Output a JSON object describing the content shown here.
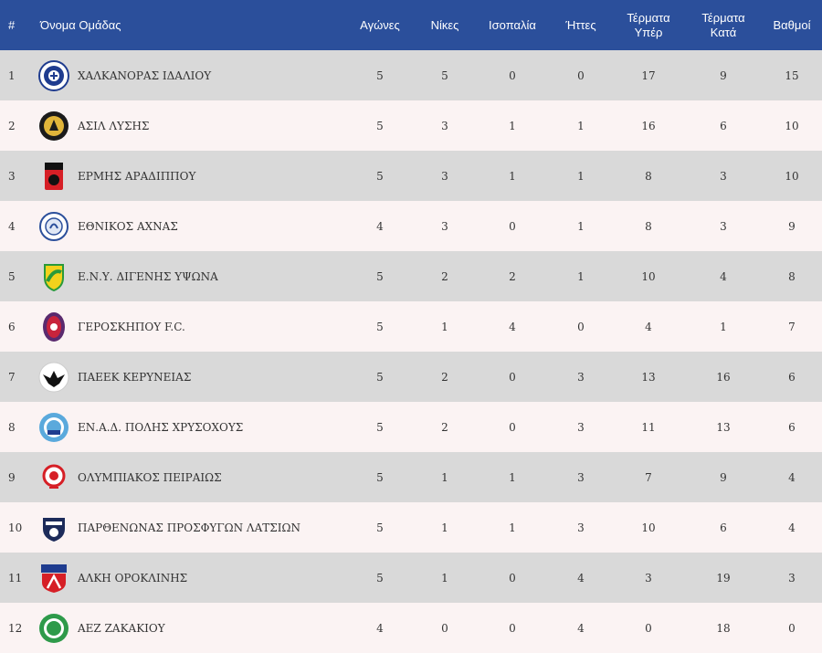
{
  "table": {
    "headers": {
      "pos": "#",
      "team": "Όνομα Ομάδας",
      "played": "Αγώνες",
      "wins": "Νίκες",
      "draws": "Ισοπαλία",
      "losses": "Ήττες",
      "goals_for_line1": "Τέρματα",
      "goals_for_line2": "Υπέρ",
      "goals_against_line1": "Τέρματα",
      "goals_against_line2": "Κατά",
      "points": "Βαθμοί"
    },
    "rows": [
      {
        "pos": "1",
        "team": "ΧΑΛΚΑΝΟΡΑΣ ΙΔΑΛΙΟΥ",
        "logo": "chalkanoras-crest-icon",
        "played": "5",
        "wins": "5",
        "draws": "0",
        "losses": "0",
        "gf": "17",
        "ga": "9",
        "pts": "15"
      },
      {
        "pos": "2",
        "team": "ΑΣΙΛ ΛΥΣΗΣ",
        "logo": "asil-crest-icon",
        "played": "5",
        "wins": "3",
        "draws": "1",
        "losses": "1",
        "gf": "16",
        "ga": "6",
        "pts": "10"
      },
      {
        "pos": "3",
        "team": "ΕΡΜΗΣ ΑΡΑΔΙΠΠΟΥ",
        "logo": "ermis-crest-icon",
        "played": "5",
        "wins": "3",
        "draws": "1",
        "losses": "1",
        "gf": "8",
        "ga": "3",
        "pts": "10"
      },
      {
        "pos": "4",
        "team": "ΕΘΝΙΚΟΣ ΑΧΝΑΣ",
        "logo": "ethnikos-crest-icon",
        "played": "4",
        "wins": "3",
        "draws": "0",
        "losses": "1",
        "gf": "8",
        "ga": "3",
        "pts": "9"
      },
      {
        "pos": "5",
        "team": "Ε.Ν.Υ. ΔΙΓΕΝΗΣ ΥΨΩΝΑ",
        "logo": "digenis-crest-icon",
        "played": "5",
        "wins": "2",
        "draws": "2",
        "losses": "1",
        "gf": "10",
        "ga": "4",
        "pts": "8"
      },
      {
        "pos": "6",
        "team": "ΓΕΡΟΣΚΗΠΟΥ F.C.",
        "logo": "geroskipou-crest-icon",
        "played": "5",
        "wins": "1",
        "draws": "4",
        "losses": "0",
        "gf": "4",
        "ga": "1",
        "pts": "7"
      },
      {
        "pos": "7",
        "team": "ΠΑΕΕΚ ΚΕΡΥΝΕΙΑΣ",
        "logo": "paeek-eagle-icon",
        "played": "5",
        "wins": "2",
        "draws": "0",
        "losses": "3",
        "gf": "13",
        "ga": "16",
        "pts": "6"
      },
      {
        "pos": "8",
        "team": "ΕΝ.Α.Δ. ΠΟΛΗΣ ΧΡΥΣΟΧΟΥΣ",
        "logo": "enad-crest-icon",
        "played": "5",
        "wins": "2",
        "draws": "0",
        "losses": "3",
        "gf": "11",
        "ga": "13",
        "pts": "6"
      },
      {
        "pos": "9",
        "team": "ΟΛΥΜΠΙΑΚΟΣ ΠΕΙΡΑΙΩΣ",
        "logo": "olympiakos-crest-icon",
        "played": "5",
        "wins": "1",
        "draws": "1",
        "losses": "3",
        "gf": "7",
        "ga": "9",
        "pts": "4"
      },
      {
        "pos": "10",
        "team": "ΠΑΡΘΕΝΩΝΑΣ ΠΡΟΣΦΥΓΩΝ ΛΑΤΣΙΩΝ",
        "logo": "parthenonas-crest-icon",
        "played": "5",
        "wins": "1",
        "draws": "1",
        "losses": "3",
        "gf": "10",
        "ga": "6",
        "pts": "4"
      },
      {
        "pos": "11",
        "team": "ΑΛΚΗ ΟΡΟΚΛΙΝΗΣ",
        "logo": "alki-crest-icon",
        "played": "5",
        "wins": "1",
        "draws": "0",
        "losses": "4",
        "gf": "3",
        "ga": "19",
        "pts": "3"
      },
      {
        "pos": "12",
        "team": "ΑΕΖ ΖΑΚΑΚΙΟΥ",
        "logo": "aez-crest-icon",
        "played": "4",
        "wins": "0",
        "draws": "0",
        "losses": "4",
        "gf": "0",
        "ga": "18",
        "pts": "0"
      }
    ]
  },
  "colors": {
    "header_bg": "#2b4f9b",
    "row_odd": "#d9d9d9",
    "row_even": "#fbf3f3"
  }
}
